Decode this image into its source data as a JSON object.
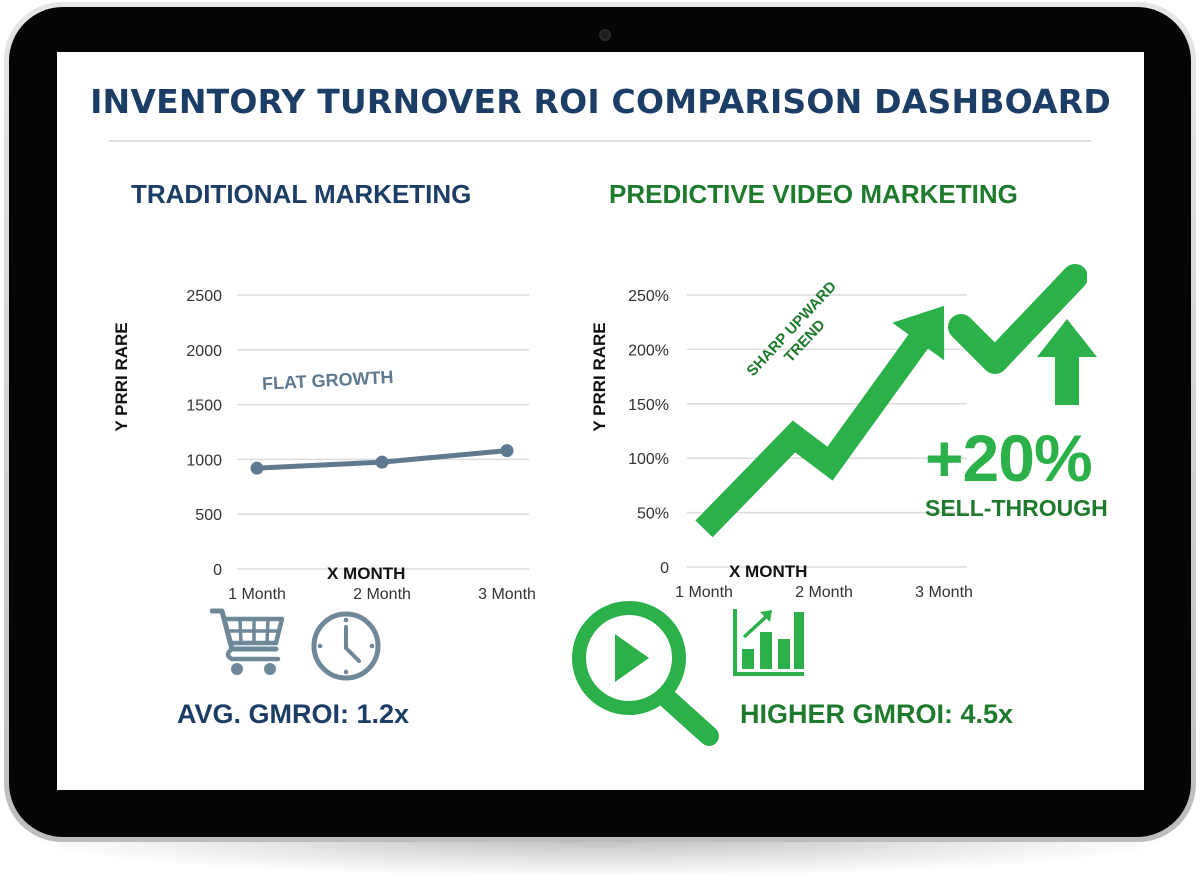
{
  "dashboard": {
    "title": "INVENTORY TURNOVER ROI COMPARISON DASHBOARD"
  },
  "left_panel": {
    "title": "TRADITIONAL MARKETING",
    "annotation": "FLAT GROWTH",
    "metric": "AVG. GMROI: 1.2x",
    "icons": [
      "shopping-cart-icon",
      "clock-icon"
    ],
    "accent_color": "#1b3d66",
    "line_color": "#5f7a90"
  },
  "right_panel": {
    "title": "PREDICTIVE VIDEO MARKETING",
    "annotation_line1": "SHARP UPWARD",
    "annotation_line2": "TREND",
    "badge_value": "+20%",
    "badge_label": "SELL-THROUGH",
    "metric": "HIGHER GMROI: 4.5x",
    "icons": [
      "checkmark-icon",
      "arrow-up-icon",
      "video-search-icon",
      "bar-chart-growth-icon"
    ],
    "accent_color": "#2bb04a",
    "text_color": "#1e7a2c"
  },
  "chart_data": [
    {
      "type": "line",
      "title": "TRADITIONAL MARKETING",
      "categories": [
        "1 Month",
        "2 Month",
        "3 Month"
      ],
      "values": [
        920,
        975,
        1080
      ],
      "xlabel": "X MONTH",
      "ylabel": "Y PRRI RARE",
      "yticks": [
        "0",
        "500",
        "1000",
        "1500",
        "2000",
        "2500"
      ],
      "ylim": [
        0,
        2500
      ],
      "grid": true,
      "annotation": "FLAT GROWTH"
    },
    {
      "type": "line",
      "title": "PREDICTIVE VIDEO MARKETING",
      "categories": [
        "1 Month",
        "2 Month",
        "3 Month"
      ],
      "x": [
        1.0,
        1.75,
        2.05,
        3.0
      ],
      "values": [
        35,
        120,
        95,
        240
      ],
      "value_unit": "%",
      "xlabel": "X MONTH",
      "ylabel": "Y PRRI RARE",
      "yticks": [
        "0",
        "50%",
        "100%",
        "150%",
        "200%",
        "250%"
      ],
      "ylim": [
        0,
        250
      ],
      "grid": true,
      "annotation": "SHARP UPWARD TREND",
      "style": "arrow"
    }
  ]
}
